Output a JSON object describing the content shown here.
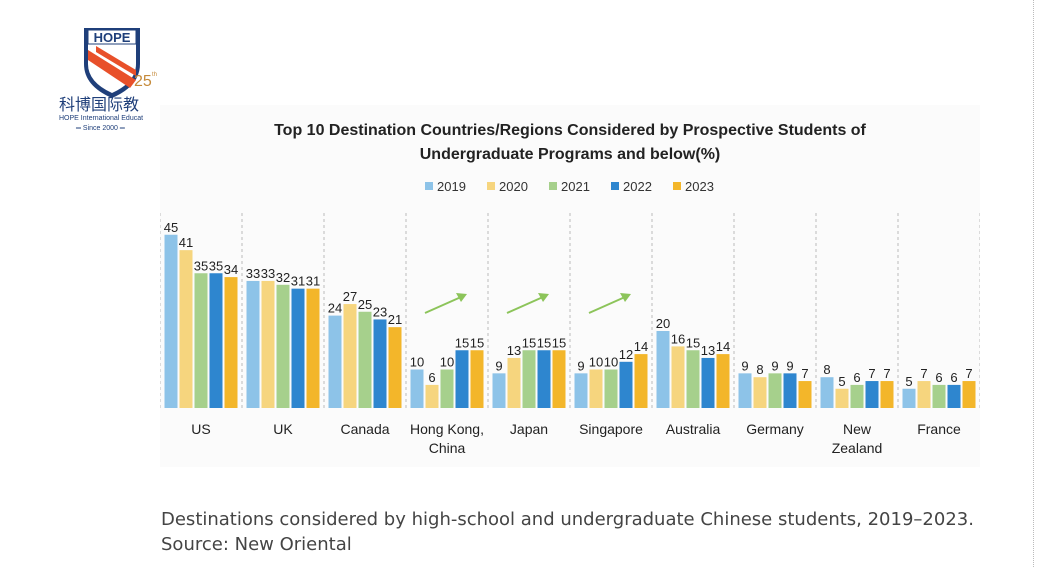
{
  "logo": {
    "text": "HOPE",
    "anniversary": "25th",
    "chinese": "科博国际教育",
    "english": "HOPE International Education",
    "since": "Since 2000"
  },
  "caption": {
    "line1": "Destinations considered by high-school and undergraduate Chinese students, 2019–2023.",
    "line2": "Source: New Oriental"
  },
  "chart_data": {
    "type": "bar",
    "title": "Top 10 Destination Countries/Regions Considered by Prospective Students of Undergraduate Programs and below(%)",
    "title_lines": [
      "Top 10 Destination Countries/Regions Considered by Prospective Students of",
      "Undergraduate Programs and below(%)"
    ],
    "legend_position": "top",
    "grid": false,
    "categories": [
      "US",
      "UK",
      "Canada",
      "Hong Kong, China",
      "Japan",
      "Singapore",
      "Australia",
      "Germany",
      "New Zealand",
      "France"
    ],
    "category_lines": [
      [
        "US"
      ],
      [
        "UK"
      ],
      [
        "Canada"
      ],
      [
        "Hong Kong,",
        "China"
      ],
      [
        "Japan"
      ],
      [
        "Singapore"
      ],
      [
        "Australia"
      ],
      [
        "Germany"
      ],
      [
        "New",
        "Zealand"
      ],
      [
        "France"
      ]
    ],
    "series": [
      {
        "name": "2019",
        "color": "#8dc3e8",
        "values": [
          45,
          33,
          24,
          10,
          9,
          9,
          20,
          9,
          8,
          5
        ]
      },
      {
        "name": "2020",
        "color": "#f6d57e",
        "values": [
          41,
          33,
          27,
          6,
          13,
          10,
          16,
          8,
          5,
          7
        ]
      },
      {
        "name": "2021",
        "color": "#a6d08c",
        "values": [
          35,
          32,
          25,
          10,
          15,
          10,
          15,
          9,
          6,
          6
        ]
      },
      {
        "name": "2022",
        "color": "#2e86cf",
        "values": [
          35,
          31,
          23,
          15,
          15,
          12,
          13,
          9,
          7,
          6
        ]
      },
      {
        "name": "2023",
        "color": "#f3b62a",
        "values": [
          34,
          31,
          21,
          15,
          15,
          14,
          14,
          7,
          7,
          7
        ]
      }
    ],
    "trend_arrows": [
      "Hong Kong, China",
      "Japan",
      "Singapore"
    ],
    "arrow_color": "#8cc45a",
    "ylim": [
      0,
      47
    ]
  }
}
